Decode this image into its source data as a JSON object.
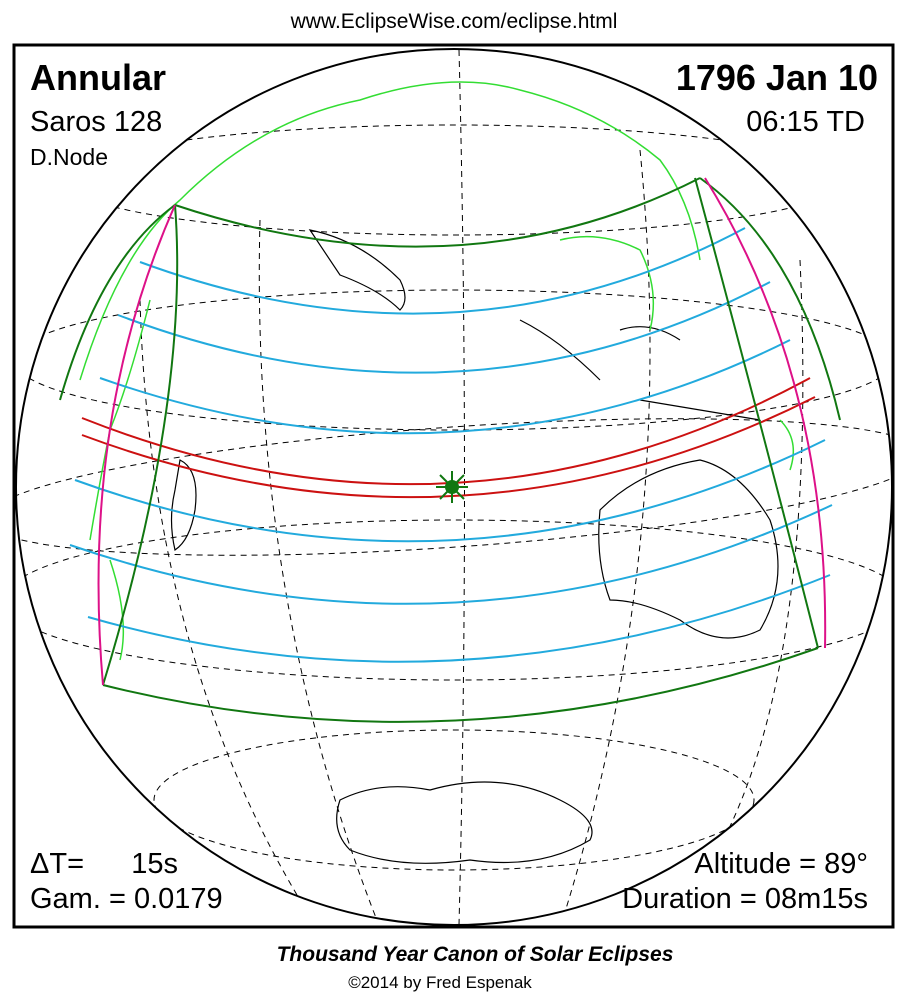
{
  "header": {
    "url": "www.EclipseWise.com/eclipse.html"
  },
  "eclipse": {
    "type": "Annular",
    "date": "1796 Jan 10",
    "saros": "Saros 128",
    "time": "06:15 TD",
    "node": "D.Node",
    "delta_t_label": "ΔT=",
    "delta_t_value": "15s",
    "gamma": "Gam. = 0.0179",
    "altitude": "Altitude = 89°",
    "duration": "Duration = 08m15s"
  },
  "footer": {
    "title": "Thousand Year Canon of Solar Eclipses",
    "copyright": "©2014 by Fred Espenak"
  }
}
